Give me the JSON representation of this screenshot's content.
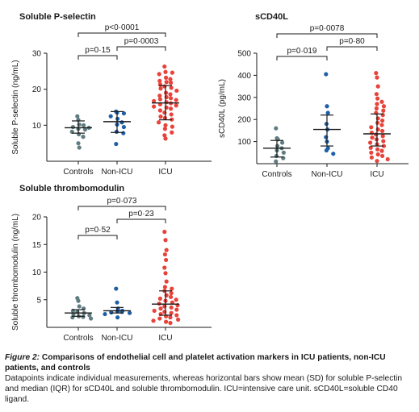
{
  "chart_data": [
    {
      "type": "scatter",
      "title": "Soluble P-selectin",
      "ylabel": "Soluble P-selectin (ng/mL)",
      "ylim": [
        0,
        30
      ],
      "yticks": [
        10,
        20,
        30
      ],
      "categories": [
        "Controls",
        "Non-ICU",
        "ICU"
      ],
      "series": [
        {
          "values": [
            12.5,
            11.5,
            10.2,
            10.0,
            9.5,
            9.3,
            9.0,
            8.8,
            8.2,
            7.5,
            6.8,
            5.0,
            3.8
          ]
        },
        {
          "values": [
            13.8,
            13.5,
            13.3,
            12.5,
            11.8,
            10.8,
            10.2,
            9.5,
            8.2,
            7.8,
            4.8
          ]
        },
        {
          "values": [
            26.3,
            24.8,
            24.6,
            24.2,
            23.2,
            22.8,
            22.3,
            22.0,
            21.8,
            21.3,
            20.8,
            20.4,
            20.2,
            19.6,
            19.0,
            18.6,
            18.2,
            17.8,
            17.5,
            17.2,
            17.0,
            16.7,
            16.4,
            16.1,
            15.8,
            15.5,
            15.2,
            14.9,
            14.6,
            14.1,
            13.5,
            13.0,
            12.4,
            12.0,
            11.6,
            10.8,
            10.0,
            9.6,
            9.0,
            8.0,
            7.2,
            6.3
          ]
        }
      ],
      "summary": [
        {
          "center": 9.3,
          "low": 7.8,
          "high": 11.2
        },
        {
          "center": 11.0,
          "low": 8.0,
          "high": 13.8
        },
        {
          "center": 16.2,
          "low": 11.5,
          "high": 21.0
        }
      ],
      "comparisons": [
        {
          "from": 0,
          "to": 1,
          "label": "p=0·15"
        },
        {
          "from": 1,
          "to": 2,
          "label": "p=0·0003"
        },
        {
          "from": 0,
          "to": 2,
          "label": "p<0·0001"
        }
      ]
    },
    {
      "type": "scatter",
      "title": "sCD40L",
      "ylabel": "sCD40L (pg/mL)",
      "ylim": [
        0,
        500
      ],
      "yticks": [
        100,
        200,
        300,
        400,
        500
      ],
      "categories": [
        "Controls",
        "Non-ICU",
        "ICU"
      ],
      "series": [
        {
          "values": [
            160,
            115,
            110,
            95,
            80,
            70,
            60,
            50,
            35,
            25,
            10
          ]
        },
        {
          "values": [
            405,
            260,
            230,
            180,
            155,
            120,
            100,
            70,
            60,
            45
          ]
        },
        {
          "values": [
            410,
            390,
            350,
            315,
            295,
            280,
            270,
            260,
            250,
            240,
            230,
            220,
            205,
            195,
            185,
            175,
            165,
            155,
            148,
            140,
            132,
            125,
            118,
            110,
            102,
            95,
            88,
            80,
            72,
            65,
            58,
            50,
            42,
            35,
            28,
            20,
            12
          ]
        }
      ],
      "summary": [
        {
          "center": 70,
          "low": 30,
          "high": 105
        },
        {
          "center": 155,
          "low": 80,
          "high": 220
        },
        {
          "center": 135,
          "low": 80,
          "high": 225
        }
      ],
      "comparisons": [
        {
          "from": 0,
          "to": 1,
          "label": "p=0·019"
        },
        {
          "from": 1,
          "to": 2,
          "label": "p=0·80"
        },
        {
          "from": 0,
          "to": 2,
          "label": "p=0·0078"
        }
      ]
    },
    {
      "type": "scatter",
      "title": "Soluble thrombomodulin",
      "ylabel": "Soluble thrombomodulin (ng/mL)",
      "ylim": [
        0,
        20
      ],
      "yticks": [
        5,
        10,
        15,
        20
      ],
      "categories": [
        "Controls",
        "Non-ICU",
        "ICU"
      ],
      "series": [
        {
          "values": [
            5.3,
            4.8,
            3.8,
            3.4,
            3.0,
            2.8,
            2.6,
            2.4,
            2.2,
            2.0,
            1.9,
            1.8,
            1.6
          ]
        },
        {
          "values": [
            7.0,
            4.5,
            3.4,
            3.0,
            2.9,
            2.8,
            2.7,
            2.6,
            2.4,
            1.8
          ]
        },
        {
          "values": [
            17.3,
            15.8,
            14.0,
            13.2,
            12.2,
            10.8,
            9.8,
            8.3,
            7.3,
            7.0,
            6.6,
            6.2,
            5.8,
            5.5,
            5.2,
            5.0,
            4.8,
            4.5,
            4.3,
            4.0,
            3.8,
            3.6,
            3.4,
            3.2,
            3.0,
            2.8,
            2.6,
            2.4,
            2.2,
            2.0,
            1.8,
            1.6,
            1.4,
            1.2,
            1.0,
            0.8
          ]
        }
      ],
      "summary": [
        {
          "center": 2.6,
          "low": 2.0,
          "high": 3.2
        },
        {
          "center": 3.0,
          "low": 2.6,
          "high": 3.6
        },
        {
          "center": 4.2,
          "low": 2.2,
          "high": 6.6
        }
      ],
      "comparisons": [
        {
          "from": 0,
          "to": 1,
          "label": "p=0·52"
        },
        {
          "from": 1,
          "to": 2,
          "label": "p=0·23"
        },
        {
          "from": 0,
          "to": 2,
          "label": "p=0·073"
        }
      ]
    }
  ],
  "colors": {
    "controls": "#5f7c80",
    "non_icu": "#1f5fa6",
    "icu": "#e8433a",
    "text": "#1a1a1a"
  },
  "caption": {
    "figure_label": "Figure 2:",
    "title": "Comparisons of endothelial cell and platelet activation markers in ICU patients, non-ICU patients, and controls",
    "body": "Datapoints indicate individual measurements, whereas horizontal bars show mean (SD) for soluble P-selectin and median (IQR) for sCD40L and soluble thrombomodulin. ICU=intensive care unit. sCD40L=soluble CD40 ligand."
  }
}
